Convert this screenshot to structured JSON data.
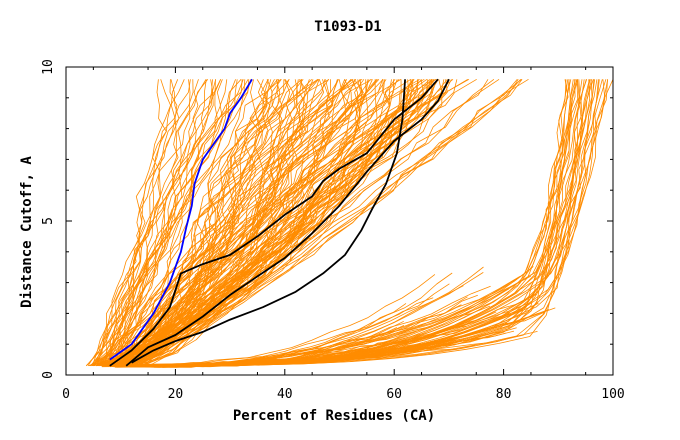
{
  "chart_data": {
    "type": "line",
    "title": "T1093-D1",
    "xlabel": "Percent of Residues (CA)",
    "ylabel": "Distance Cutoff, A",
    "xlim": [
      0,
      100
    ],
    "ylim": [
      0,
      10
    ],
    "xticks": [
      "0",
      "20",
      "40",
      "60",
      "80",
      "100"
    ],
    "yticks": [
      "0",
      "5",
      "10"
    ],
    "grid": false,
    "colors": {
      "background_lines": "#ff8c00",
      "highlight_black": "#000000",
      "highlight_blue": "#0000ff",
      "frame": "#000000"
    },
    "highlight_series": [
      {
        "color": "#0000ff",
        "x": [
          8,
          12,
          16,
          19,
          21,
          22,
          23,
          23.5,
          25,
          27,
          29,
          30,
          32,
          34
        ],
        "y": [
          0.5,
          1.0,
          2.0,
          3.0,
          4.0,
          4.8,
          5.5,
          6.2,
          7.0,
          7.5,
          8.0,
          8.5,
          9.0,
          9.6
        ]
      },
      {
        "color": "#000000",
        "x": [
          8,
          12,
          16,
          19,
          21,
          25,
          30,
          35,
          40,
          45,
          47,
          50,
          55,
          60,
          65,
          68
        ],
        "y": [
          0.3,
          0.8,
          1.5,
          2.2,
          3.3,
          3.6,
          3.9,
          4.5,
          5.2,
          5.8,
          6.3,
          6.7,
          7.2,
          8.3,
          9.0,
          9.6
        ]
      },
      {
        "color": "#000000",
        "x": [
          11,
          15,
          20,
          25,
          30,
          35,
          40,
          45,
          50,
          55,
          60,
          65,
          68,
          70
        ],
        "y": [
          0.3,
          0.9,
          1.3,
          1.9,
          2.6,
          3.2,
          3.8,
          4.6,
          5.5,
          6.6,
          7.6,
          8.3,
          8.9,
          9.6
        ]
      },
      {
        "color": "#000000",
        "x": [
          12,
          16,
          20,
          25,
          30,
          36,
          42,
          47,
          51,
          54,
          56,
          58.5,
          60.5,
          61.5,
          62
        ],
        "y": [
          0.4,
          0.8,
          1.1,
          1.4,
          1.8,
          2.2,
          2.7,
          3.3,
          3.9,
          4.7,
          5.4,
          6.2,
          7.2,
          8.3,
          9.6
        ]
      }
    ]
  }
}
